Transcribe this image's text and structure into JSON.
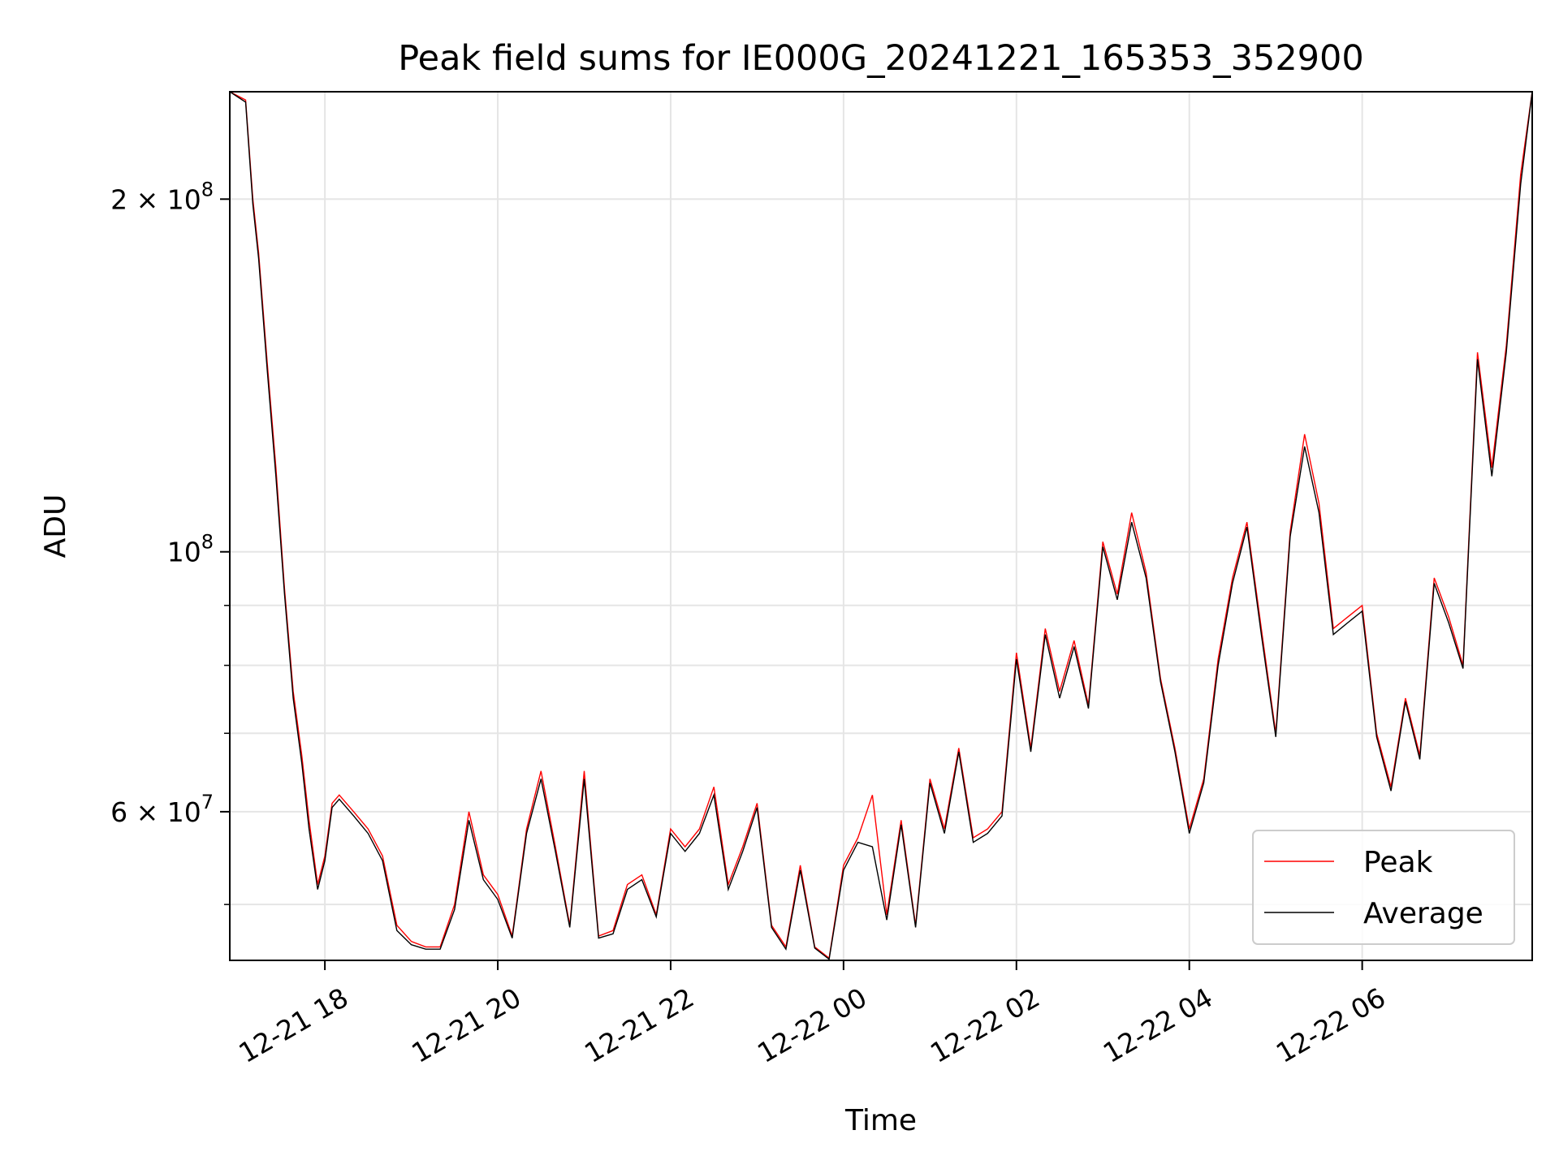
{
  "chart_data": {
    "type": "line",
    "title": "Peak field sums for IE000G_20241221_165353_352900",
    "xlabel": "Time",
    "ylabel": "ADU",
    "yscale": "log",
    "xlim": [
      "2024-12-21 16:54",
      "2024-12-22 07:58"
    ],
    "ylim": [
      44800000,
      247000000
    ],
    "grid": true,
    "legend": {
      "placement": "lower-right",
      "entries": [
        "Peak",
        "Average"
      ]
    },
    "x_ticks": [
      "12-21 18",
      "12-21 20",
      "12-21 22",
      "12-22 00",
      "12-22 02",
      "12-22 04",
      "12-22 06"
    ],
    "x_tick_times": [
      "2024-12-21 18:00",
      "2024-12-21 20:00",
      "2024-12-21 22:00",
      "2024-12-22 00:00",
      "2024-12-22 02:00",
      "2024-12-22 04:00",
      "2024-12-22 06:00"
    ],
    "y_major_ticks": [
      {
        "value": 200000000,
        "mantissa": "2",
        "exponent": "8"
      },
      {
        "value": 100000000,
        "mantissa": "",
        "exponent": "8"
      },
      {
        "value": 60000000,
        "mantissa": "6",
        "exponent": "7"
      }
    ],
    "y_minor_ticks": [
      50000000,
      70000000,
      80000000,
      90000000
    ],
    "series": [
      {
        "name": "Peak",
        "color": "#ff0000",
        "x": [
          "2024-12-21 16:54",
          "2024-12-21 17:05",
          "2024-12-21 17:10",
          "2024-12-21 17:14",
          "2024-12-21 17:20",
          "2024-12-21 17:26",
          "2024-12-21 17:32",
          "2024-12-21 17:38",
          "2024-12-21 17:44",
          "2024-12-21 17:49",
          "2024-12-21 17:55",
          "2024-12-21 18:00",
          "2024-12-21 18:05",
          "2024-12-21 18:10",
          "2024-12-21 18:20",
          "2024-12-21 18:30",
          "2024-12-21 18:40",
          "2024-12-21 18:50",
          "2024-12-21 19:00",
          "2024-12-21 19:10",
          "2024-12-21 19:20",
          "2024-12-21 19:30",
          "2024-12-21 19:40",
          "2024-12-21 19:50",
          "2024-12-21 20:00",
          "2024-12-21 20:10",
          "2024-12-21 20:20",
          "2024-12-21 20:30",
          "2024-12-21 20:40",
          "2024-12-21 20:50",
          "2024-12-21 21:00",
          "2024-12-21 21:10",
          "2024-12-21 21:20",
          "2024-12-21 21:30",
          "2024-12-21 21:40",
          "2024-12-21 21:50",
          "2024-12-21 22:00",
          "2024-12-21 22:10",
          "2024-12-21 22:20",
          "2024-12-21 22:30",
          "2024-12-21 22:40",
          "2024-12-21 22:50",
          "2024-12-21 23:00",
          "2024-12-21 23:10",
          "2024-12-21 23:20",
          "2024-12-21 23:30",
          "2024-12-21 23:40",
          "2024-12-21 23:50",
          "2024-12-22 00:00",
          "2024-12-22 00:10",
          "2024-12-22 00:20",
          "2024-12-22 00:30",
          "2024-12-22 00:40",
          "2024-12-22 00:50",
          "2024-12-22 01:00",
          "2024-12-22 01:10",
          "2024-12-22 01:20",
          "2024-12-22 01:30",
          "2024-12-22 01:40",
          "2024-12-22 01:50",
          "2024-12-22 02:00",
          "2024-12-22 02:10",
          "2024-12-22 02:20",
          "2024-12-22 02:30",
          "2024-12-22 02:40",
          "2024-12-22 02:50",
          "2024-12-22 03:00",
          "2024-12-22 03:10",
          "2024-12-22 03:20",
          "2024-12-22 03:30",
          "2024-12-22 03:40",
          "2024-12-22 03:50",
          "2024-12-22 04:00",
          "2024-12-22 04:10",
          "2024-12-22 04:20",
          "2024-12-22 04:30",
          "2024-12-22 04:40",
          "2024-12-22 04:50",
          "2024-12-22 05:00",
          "2024-12-22 05:10",
          "2024-12-22 05:20",
          "2024-12-22 05:30",
          "2024-12-22 05:40",
          "2024-12-22 05:50",
          "2024-12-22 06:00",
          "2024-12-22 06:10",
          "2024-12-22 06:20",
          "2024-12-22 06:30",
          "2024-12-22 06:40",
          "2024-12-22 06:50",
          "2024-12-22 07:00",
          "2024-12-22 07:10",
          "2024-12-22 07:20",
          "2024-12-22 07:30",
          "2024-12-22 07:40",
          "2024-12-22 07:50",
          "2024-12-22 07:58"
        ],
        "y": [
          248000000,
          243000000,
          200000000,
          180000000,
          145000000,
          118000000,
          93000000,
          76000000,
          67000000,
          59000000,
          52000000,
          55000000,
          61000000,
          62000000,
          60000000,
          58000000,
          55000000,
          48000000,
          46500000,
          46000000,
          46000000,
          50000000,
          60000000,
          53000000,
          51000000,
          47000000,
          58000000,
          65000000,
          56000000,
          48000000,
          65000000,
          47000000,
          47500000,
          52000000,
          53000000,
          49000000,
          58000000,
          56000000,
          58000000,
          63000000,
          52000000,
          56000000,
          61000000,
          48000000,
          46000000,
          54000000,
          46000000,
          45000000,
          54000000,
          57000000,
          62000000,
          49000000,
          59000000,
          48000000,
          64000000,
          58000000,
          68000000,
          57000000,
          58000000,
          60000000,
          82000000,
          68000000,
          86000000,
          76000000,
          84000000,
          74000000,
          102000000,
          92000000,
          108000000,
          96000000,
          78000000,
          68000000,
          58000000,
          64000000,
          81000000,
          95000000,
          106000000,
          86000000,
          70000000,
          104000000,
          126000000,
          110000000,
          86000000,
          88000000,
          90000000,
          70000000,
          63000000,
          75000000,
          67000000,
          95000000,
          88000000,
          80000000,
          148000000,
          118000000,
          150000000,
          210000000,
          248000000
        ]
      },
      {
        "name": "Average",
        "color": "#000000",
        "x": [
          "2024-12-21 16:54",
          "2024-12-21 17:05",
          "2024-12-21 17:10",
          "2024-12-21 17:14",
          "2024-12-21 17:20",
          "2024-12-21 17:26",
          "2024-12-21 17:32",
          "2024-12-21 17:38",
          "2024-12-21 17:44",
          "2024-12-21 17:49",
          "2024-12-21 17:55",
          "2024-12-21 18:00",
          "2024-12-21 18:05",
          "2024-12-21 18:10",
          "2024-12-21 18:20",
          "2024-12-21 18:30",
          "2024-12-21 18:40",
          "2024-12-21 18:50",
          "2024-12-21 19:00",
          "2024-12-21 19:10",
          "2024-12-21 19:20",
          "2024-12-21 19:30",
          "2024-12-21 19:40",
          "2024-12-21 19:50",
          "2024-12-21 20:00",
          "2024-12-21 20:10",
          "2024-12-21 20:20",
          "2024-12-21 20:30",
          "2024-12-21 20:40",
          "2024-12-21 20:50",
          "2024-12-21 21:00",
          "2024-12-21 21:10",
          "2024-12-21 21:20",
          "2024-12-21 21:30",
          "2024-12-21 21:40",
          "2024-12-21 21:50",
          "2024-12-21 22:00",
          "2024-12-21 22:10",
          "2024-12-21 22:20",
          "2024-12-21 22:30",
          "2024-12-21 22:40",
          "2024-12-21 22:50",
          "2024-12-21 23:00",
          "2024-12-21 23:10",
          "2024-12-21 23:20",
          "2024-12-21 23:30",
          "2024-12-21 23:40",
          "2024-12-21 23:50",
          "2024-12-22 00:00",
          "2024-12-22 00:10",
          "2024-12-22 00:20",
          "2024-12-22 00:30",
          "2024-12-22 00:40",
          "2024-12-22 00:50",
          "2024-12-22 01:00",
          "2024-12-22 01:10",
          "2024-12-22 01:20",
          "2024-12-22 01:30",
          "2024-12-22 01:40",
          "2024-12-22 01:50",
          "2024-12-22 02:00",
          "2024-12-22 02:10",
          "2024-12-22 02:20",
          "2024-12-22 02:30",
          "2024-12-22 02:40",
          "2024-12-22 02:50",
          "2024-12-22 03:00",
          "2024-12-22 03:10",
          "2024-12-22 03:20",
          "2024-12-22 03:30",
          "2024-12-22 03:40",
          "2024-12-22 03:50",
          "2024-12-22 04:00",
          "2024-12-22 04:10",
          "2024-12-22 04:20",
          "2024-12-22 04:30",
          "2024-12-22 04:40",
          "2024-12-22 04:50",
          "2024-12-22 05:00",
          "2024-12-22 05:10",
          "2024-12-22 05:20",
          "2024-12-22 05:30",
          "2024-12-22 05:40",
          "2024-12-22 05:50",
          "2024-12-22 06:00",
          "2024-12-22 06:10",
          "2024-12-22 06:20",
          "2024-12-22 06:30",
          "2024-12-22 06:40",
          "2024-12-22 06:50",
          "2024-12-22 07:00",
          "2024-12-22 07:10",
          "2024-12-22 07:20",
          "2024-12-22 07:30",
          "2024-12-22 07:40",
          "2024-12-22 07:50",
          "2024-12-22 07:58"
        ],
        "y": [
          248000000,
          242000000,
          198000000,
          178000000,
          143000000,
          116000000,
          92000000,
          75000000,
          66000000,
          58000000,
          51500000,
          54500000,
          60500000,
          61500000,
          59500000,
          57500000,
          54500000,
          47500000,
          46200000,
          45800000,
          45800000,
          49500000,
          59000000,
          52500000,
          50500000,
          46800000,
          57500000,
          64000000,
          55500000,
          47800000,
          64000000,
          46800000,
          47200000,
          51500000,
          52500000,
          48800000,
          57500000,
          55500000,
          57500000,
          62000000,
          51500000,
          55500000,
          60500000,
          47800000,
          45800000,
          53500000,
          45900000,
          44900000,
          53500000,
          56500000,
          56000000,
          48500000,
          58500000,
          47800000,
          63500000,
          57500000,
          67500000,
          56500000,
          57500000,
          59500000,
          81000000,
          67500000,
          85000000,
          75000000,
          83000000,
          73500000,
          101000000,
          91000000,
          106000000,
          95000000,
          77500000,
          67500000,
          57500000,
          63500000,
          80000000,
          94000000,
          105000000,
          85000000,
          69500000,
          103000000,
          123000000,
          108000000,
          85000000,
          87000000,
          89000000,
          69500000,
          62500000,
          74500000,
          66500000,
          94000000,
          87000000,
          79500000,
          146000000,
          116000000,
          148000000,
          206000000,
          247000000
        ]
      }
    ]
  }
}
